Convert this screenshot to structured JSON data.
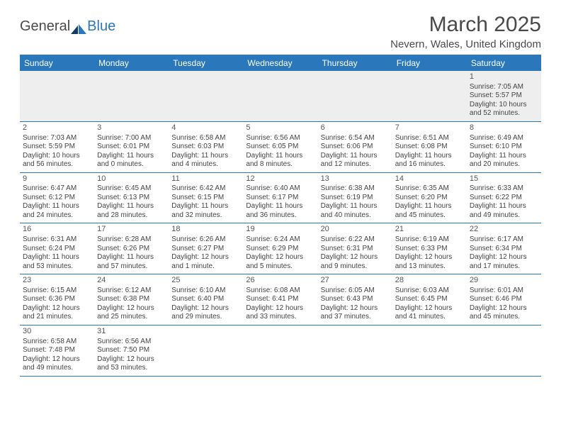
{
  "logo": {
    "part1": "General",
    "part2": "Blue"
  },
  "title": "March 2025",
  "location": "Nevern, Wales, United Kingdom",
  "colors": {
    "header_bg": "#2a77bb",
    "header_text": "#ffffff",
    "rule": "#2a77bb",
    "body_text": "#444444",
    "empty_bg": "#eeeeee"
  },
  "dayHeaders": [
    "Sunday",
    "Monday",
    "Tuesday",
    "Wednesday",
    "Thursday",
    "Friday",
    "Saturday"
  ],
  "weeks": [
    [
      null,
      null,
      null,
      null,
      null,
      null,
      {
        "n": "1",
        "sunrise": "Sunrise: 7:05 AM",
        "sunset": "Sunset: 5:57 PM",
        "day1": "Daylight: 10 hours",
        "day2": "and 52 minutes."
      }
    ],
    [
      {
        "n": "2",
        "sunrise": "Sunrise: 7:03 AM",
        "sunset": "Sunset: 5:59 PM",
        "day1": "Daylight: 10 hours",
        "day2": "and 56 minutes."
      },
      {
        "n": "3",
        "sunrise": "Sunrise: 7:00 AM",
        "sunset": "Sunset: 6:01 PM",
        "day1": "Daylight: 11 hours",
        "day2": "and 0 minutes."
      },
      {
        "n": "4",
        "sunrise": "Sunrise: 6:58 AM",
        "sunset": "Sunset: 6:03 PM",
        "day1": "Daylight: 11 hours",
        "day2": "and 4 minutes."
      },
      {
        "n": "5",
        "sunrise": "Sunrise: 6:56 AM",
        "sunset": "Sunset: 6:05 PM",
        "day1": "Daylight: 11 hours",
        "day2": "and 8 minutes."
      },
      {
        "n": "6",
        "sunrise": "Sunrise: 6:54 AM",
        "sunset": "Sunset: 6:06 PM",
        "day1": "Daylight: 11 hours",
        "day2": "and 12 minutes."
      },
      {
        "n": "7",
        "sunrise": "Sunrise: 6:51 AM",
        "sunset": "Sunset: 6:08 PM",
        "day1": "Daylight: 11 hours",
        "day2": "and 16 minutes."
      },
      {
        "n": "8",
        "sunrise": "Sunrise: 6:49 AM",
        "sunset": "Sunset: 6:10 PM",
        "day1": "Daylight: 11 hours",
        "day2": "and 20 minutes."
      }
    ],
    [
      {
        "n": "9",
        "sunrise": "Sunrise: 6:47 AM",
        "sunset": "Sunset: 6:12 PM",
        "day1": "Daylight: 11 hours",
        "day2": "and 24 minutes."
      },
      {
        "n": "10",
        "sunrise": "Sunrise: 6:45 AM",
        "sunset": "Sunset: 6:13 PM",
        "day1": "Daylight: 11 hours",
        "day2": "and 28 minutes."
      },
      {
        "n": "11",
        "sunrise": "Sunrise: 6:42 AM",
        "sunset": "Sunset: 6:15 PM",
        "day1": "Daylight: 11 hours",
        "day2": "and 32 minutes."
      },
      {
        "n": "12",
        "sunrise": "Sunrise: 6:40 AM",
        "sunset": "Sunset: 6:17 PM",
        "day1": "Daylight: 11 hours",
        "day2": "and 36 minutes."
      },
      {
        "n": "13",
        "sunrise": "Sunrise: 6:38 AM",
        "sunset": "Sunset: 6:19 PM",
        "day1": "Daylight: 11 hours",
        "day2": "and 40 minutes."
      },
      {
        "n": "14",
        "sunrise": "Sunrise: 6:35 AM",
        "sunset": "Sunset: 6:20 PM",
        "day1": "Daylight: 11 hours",
        "day2": "and 45 minutes."
      },
      {
        "n": "15",
        "sunrise": "Sunrise: 6:33 AM",
        "sunset": "Sunset: 6:22 PM",
        "day1": "Daylight: 11 hours",
        "day2": "and 49 minutes."
      }
    ],
    [
      {
        "n": "16",
        "sunrise": "Sunrise: 6:31 AM",
        "sunset": "Sunset: 6:24 PM",
        "day1": "Daylight: 11 hours",
        "day2": "and 53 minutes."
      },
      {
        "n": "17",
        "sunrise": "Sunrise: 6:28 AM",
        "sunset": "Sunset: 6:26 PM",
        "day1": "Daylight: 11 hours",
        "day2": "and 57 minutes."
      },
      {
        "n": "18",
        "sunrise": "Sunrise: 6:26 AM",
        "sunset": "Sunset: 6:27 PM",
        "day1": "Daylight: 12 hours",
        "day2": "and 1 minute."
      },
      {
        "n": "19",
        "sunrise": "Sunrise: 6:24 AM",
        "sunset": "Sunset: 6:29 PM",
        "day1": "Daylight: 12 hours",
        "day2": "and 5 minutes."
      },
      {
        "n": "20",
        "sunrise": "Sunrise: 6:22 AM",
        "sunset": "Sunset: 6:31 PM",
        "day1": "Daylight: 12 hours",
        "day2": "and 9 minutes."
      },
      {
        "n": "21",
        "sunrise": "Sunrise: 6:19 AM",
        "sunset": "Sunset: 6:33 PM",
        "day1": "Daylight: 12 hours",
        "day2": "and 13 minutes."
      },
      {
        "n": "22",
        "sunrise": "Sunrise: 6:17 AM",
        "sunset": "Sunset: 6:34 PM",
        "day1": "Daylight: 12 hours",
        "day2": "and 17 minutes."
      }
    ],
    [
      {
        "n": "23",
        "sunrise": "Sunrise: 6:15 AM",
        "sunset": "Sunset: 6:36 PM",
        "day1": "Daylight: 12 hours",
        "day2": "and 21 minutes."
      },
      {
        "n": "24",
        "sunrise": "Sunrise: 6:12 AM",
        "sunset": "Sunset: 6:38 PM",
        "day1": "Daylight: 12 hours",
        "day2": "and 25 minutes."
      },
      {
        "n": "25",
        "sunrise": "Sunrise: 6:10 AM",
        "sunset": "Sunset: 6:40 PM",
        "day1": "Daylight: 12 hours",
        "day2": "and 29 minutes."
      },
      {
        "n": "26",
        "sunrise": "Sunrise: 6:08 AM",
        "sunset": "Sunset: 6:41 PM",
        "day1": "Daylight: 12 hours",
        "day2": "and 33 minutes."
      },
      {
        "n": "27",
        "sunrise": "Sunrise: 6:05 AM",
        "sunset": "Sunset: 6:43 PM",
        "day1": "Daylight: 12 hours",
        "day2": "and 37 minutes."
      },
      {
        "n": "28",
        "sunrise": "Sunrise: 6:03 AM",
        "sunset": "Sunset: 6:45 PM",
        "day1": "Daylight: 12 hours",
        "day2": "and 41 minutes."
      },
      {
        "n": "29",
        "sunrise": "Sunrise: 6:01 AM",
        "sunset": "Sunset: 6:46 PM",
        "day1": "Daylight: 12 hours",
        "day2": "and 45 minutes."
      }
    ],
    [
      {
        "n": "30",
        "sunrise": "Sunrise: 6:58 AM",
        "sunset": "Sunset: 7:48 PM",
        "day1": "Daylight: 12 hours",
        "day2": "and 49 minutes."
      },
      {
        "n": "31",
        "sunrise": "Sunrise: 6:56 AM",
        "sunset": "Sunset: 7:50 PM",
        "day1": "Daylight: 12 hours",
        "day2": "and 53 minutes."
      },
      null,
      null,
      null,
      null,
      null
    ]
  ]
}
